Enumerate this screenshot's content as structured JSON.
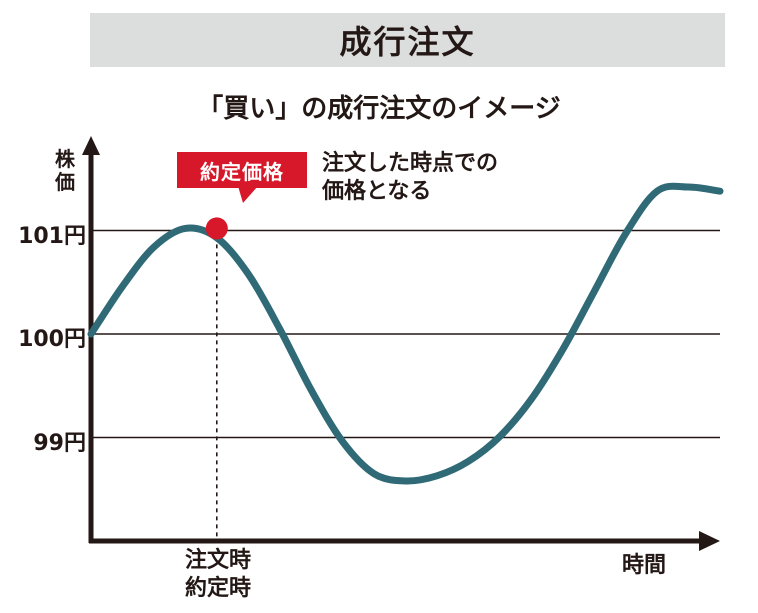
{
  "header": {
    "title": "成行注文"
  },
  "chart_data": {
    "type": "line",
    "title": "「買い」の成行注文のイメージ",
    "ylabel": "株価",
    "xlabel": "時間",
    "yticks": [
      "101円",
      "100円",
      "99円"
    ],
    "ytick_values": [
      101,
      100,
      99
    ],
    "ylim": [
      97.95,
      102
    ],
    "xlim": [
      0,
      1
    ],
    "grid": "horizontal at 99, 100, 101",
    "series": [
      {
        "color": "#2f6a76",
        "x": [
          0,
          0.05,
          0.1,
          0.15,
          0.2,
          0.25,
          0.3,
          0.35,
          0.4,
          0.45,
          0.5,
          0.55,
          0.6,
          0.65,
          0.7,
          0.75,
          0.8,
          0.85,
          0.9,
          0.95,
          1.0
        ],
        "y": [
          100.0,
          100.46,
          100.84,
          101.02,
          100.93,
          100.58,
          100.05,
          99.46,
          98.96,
          98.65,
          98.58,
          98.63,
          98.77,
          99.01,
          99.37,
          99.85,
          100.41,
          100.97,
          101.38,
          101.42,
          101.38
        ]
      }
    ],
    "marker": {
      "x": 0.2,
      "y": 101.02,
      "color": "#d7182a"
    },
    "annotations": {
      "badge": "約定価格",
      "callout_line1": "注文した時点での",
      "callout_line2": "価格となる",
      "event_label_line1": "注文時",
      "event_label_line2": "約定時"
    }
  }
}
